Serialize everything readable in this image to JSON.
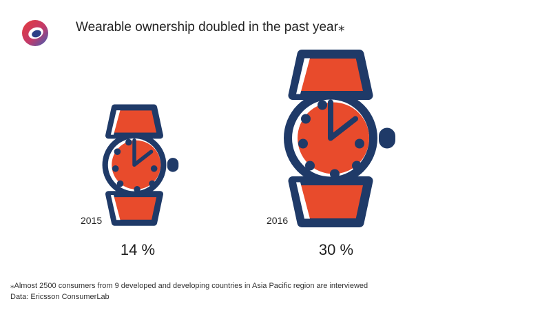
{
  "title": "Wearable ownership doubled in the past year⁎",
  "footnote": "⁎Almost 2500 consumers from 9 developed and developing  countries  in Asia Pacific region are interviewed",
  "source": "Data: Ericsson ConsumerLab",
  "logo_icon": "ring-logo-icon",
  "colors": {
    "navy": "#1f3a68",
    "orange": "#e84b2c",
    "logo_red": "#e63b3b",
    "logo_blue": "#3b5fb8"
  },
  "chart_data": {
    "type": "pictograph",
    "icon": "wristwatch-icon",
    "categories": [
      "2015",
      "2016"
    ],
    "values": [
      14,
      30
    ],
    "value_labels": [
      "14 %",
      "30 %"
    ],
    "unit": "%",
    "title": "Wearable ownership doubled in the past year⁎"
  }
}
